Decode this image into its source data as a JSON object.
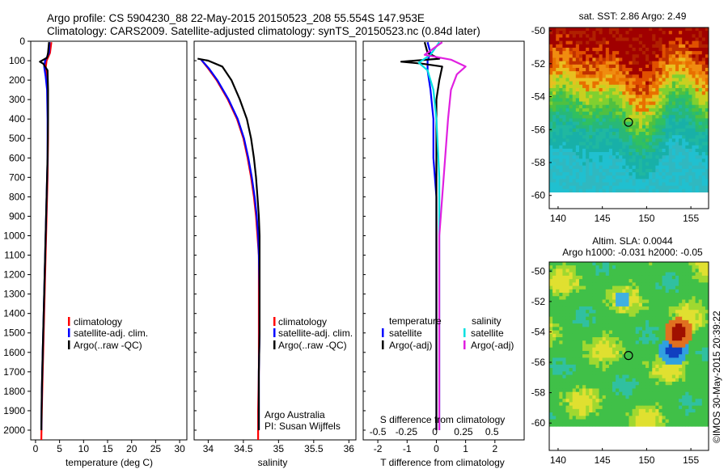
{
  "header": {
    "line1": "Argo profile: CS 5904230_88 22-May-2015 20150523_208 55.554S 147.953E",
    "line2": "Climatology: CARS2009. Satellite-adjusted climatology: synTS_20150523.nc (0.84d later)"
  },
  "colors": {
    "climatology": "#ff0000",
    "satellite": "#0000ff",
    "argo": "#000000",
    "satellite_salinity": "#00e0e0",
    "argo_salinity": "#e020e0"
  },
  "panels": {
    "temperature": {
      "xlabel": "temperature (deg C)",
      "legend": [
        "climatology",
        "satellite-adj. clim.",
        "Argo(..raw -QC)"
      ]
    },
    "salinity": {
      "xlabel": "salinity",
      "legend": [
        "climatology",
        "satellite-adj. clim.",
        "Argo(..raw -QC)"
      ],
      "note1": "Argo Australia",
      "note2": "PI: Susan Wijffels"
    },
    "difference": {
      "xlabel": "T difference from climatology",
      "top_label": "S difference from climatology",
      "legend_head_t": "temperature",
      "legend_head_s": "salinity",
      "legend_t": [
        "satellite",
        "Argo(-adj)"
      ],
      "legend_s": [
        "satellite",
        "Argo(-adj)"
      ]
    },
    "sst_map": {
      "title": "sat. SST: 2.86 Argo: 2.49"
    },
    "sla_map": {
      "title1": "Altim. SLA: 0.0044",
      "title2": "Argo h1000: -0.031 h2000: -0.05"
    }
  },
  "side_stamp": "©IMOS 30-May-2015 20:39:22",
  "chart_data": [
    {
      "type": "line",
      "name": "temperature",
      "xlim": [
        -1,
        31.5
      ],
      "ylim": [
        0,
        2050
      ],
      "y_reversed": true,
      "xticks": [
        0,
        5,
        10,
        15,
        20,
        25,
        30
      ],
      "yticks": [
        0,
        100,
        200,
        300,
        400,
        500,
        600,
        700,
        800,
        900,
        1000,
        1100,
        1200,
        1300,
        1400,
        1500,
        1600,
        1700,
        1800,
        1900,
        2000
      ],
      "xlabel": "temperature (deg C)",
      "series": [
        {
          "name": "climatology",
          "points": [
            [
              3.3,
              5
            ],
            [
              3.0,
              60
            ],
            [
              2.3,
              100
            ],
            [
              2.1,
              140
            ],
            [
              2.4,
              200
            ],
            [
              2.6,
              300
            ],
            [
              2.6,
              500
            ],
            [
              2.5,
              700
            ],
            [
              2.3,
              900
            ],
            [
              2.1,
              1100
            ],
            [
              1.9,
              1300
            ],
            [
              1.7,
              1500
            ],
            [
              1.5,
              1700
            ],
            [
              1.3,
              1900
            ],
            [
              1.2,
              2050
            ]
          ]
        },
        {
          "name": "satellite-adj. clim.",
          "points": [
            [
              2.9,
              5
            ],
            [
              2.8,
              60
            ],
            [
              2.0,
              100
            ],
            [
              1.8,
              130
            ],
            [
              2.1,
              180
            ],
            [
              2.4,
              250
            ],
            [
              2.5,
              400
            ],
            [
              2.5,
              600
            ],
            [
              2.3,
              800
            ],
            [
              2.1,
              1000
            ],
            [
              1.9,
              1200
            ],
            [
              1.7,
              1400
            ],
            [
              1.5,
              1600
            ],
            [
              1.3,
              1800
            ],
            [
              1.2,
              2000
            ]
          ]
        },
        {
          "name": "Argo(..raw -QC)",
          "points": [
            [
              2.8,
              5
            ],
            [
              2.6,
              60
            ],
            [
              2.4,
              85
            ],
            [
              0.9,
              105
            ],
            [
              1.6,
              115
            ],
            [
              2.5,
              150
            ],
            [
              2.6,
              250
            ],
            [
              2.6,
              400
            ],
            [
              2.5,
              600
            ],
            [
              2.3,
              800
            ],
            [
              2.1,
              1000
            ],
            [
              1.9,
              1200
            ],
            [
              1.7,
              1400
            ],
            [
              1.5,
              1600
            ],
            [
              1.3,
              1800
            ],
            [
              1.2,
              2000
            ]
          ]
        }
      ]
    },
    {
      "type": "line",
      "name": "salinity",
      "xlim": [
        33.8,
        36.1
      ],
      "ylim": [
        0,
        2050
      ],
      "y_reversed": true,
      "xticks": [
        34,
        34.5,
        35,
        35.5,
        36
      ],
      "yticks": [
        0,
        100,
        200,
        300,
        400,
        500,
        600,
        700,
        800,
        900,
        1000,
        1100,
        1200,
        1300,
        1400,
        1500,
        1600,
        1700,
        1800,
        1900,
        2000
      ],
      "xlabel": "salinity",
      "series": [
        {
          "name": "climatology",
          "points": [
            [
              33.9,
              95
            ],
            [
              34.0,
              140
            ],
            [
              34.12,
              200
            ],
            [
              34.28,
              300
            ],
            [
              34.41,
              400
            ],
            [
              34.5,
              500
            ],
            [
              34.56,
              600
            ],
            [
              34.61,
              700
            ],
            [
              34.65,
              800
            ],
            [
              34.68,
              900
            ],
            [
              34.7,
              1000
            ],
            [
              34.72,
              1100
            ],
            [
              34.72,
              1300
            ],
            [
              34.72,
              1500
            ],
            [
              34.72,
              1700
            ],
            [
              34.71,
              1900
            ],
            [
              34.71,
              2050
            ]
          ]
        },
        {
          "name": "satellite-adj. clim.",
          "points": [
            [
              33.9,
              95
            ],
            [
              34.01,
              140
            ],
            [
              34.13,
              200
            ],
            [
              34.29,
              300
            ],
            [
              34.42,
              400
            ],
            [
              34.51,
              500
            ],
            [
              34.57,
              600
            ],
            [
              34.62,
              700
            ],
            [
              34.66,
              800
            ],
            [
              34.69,
              900
            ],
            [
              34.71,
              1000
            ],
            [
              34.72,
              1100
            ],
            [
              34.73,
              1300
            ],
            [
              34.73,
              1500
            ],
            [
              34.72,
              1700
            ],
            [
              34.72,
              1900
            ],
            [
              34.72,
              2000
            ]
          ]
        },
        {
          "name": "Argo(..raw -QC)",
          "points": [
            [
              33.85,
              90
            ],
            [
              34.0,
              100
            ],
            [
              34.2,
              130
            ],
            [
              34.33,
              200
            ],
            [
              34.45,
              300
            ],
            [
              34.55,
              400
            ],
            [
              34.61,
              500
            ],
            [
              34.65,
              600
            ],
            [
              34.68,
              700
            ],
            [
              34.7,
              800
            ],
            [
              34.72,
              900
            ],
            [
              34.73,
              1000
            ],
            [
              34.73,
              1100
            ],
            [
              34.73,
              1300
            ],
            [
              34.73,
              1500
            ],
            [
              34.72,
              1700
            ],
            [
              34.72,
              1900
            ],
            [
              34.72,
              2000
            ]
          ]
        }
      ]
    },
    {
      "type": "line",
      "name": "difference",
      "xlim": [
        -2.5,
        3
      ],
      "ylim": [
        0,
        2050
      ],
      "y_reversed": true,
      "xticks": [
        -2,
        -1,
        0,
        1,
        2
      ],
      "top_ticks": [
        "-0.5",
        "-0.25",
        "0",
        "0.25",
        "0.5"
      ],
      "xlabel": "T difference from climatology",
      "series": [
        {
          "name": "temperature satellite",
          "points": [
            [
              -0.3,
              5
            ],
            [
              -0.2,
              60
            ],
            [
              -0.3,
              100
            ],
            [
              -0.3,
              150
            ],
            [
              -0.2,
              250
            ],
            [
              -0.1,
              400
            ],
            [
              -0.1,
              600
            ],
            [
              0,
              800
            ],
            [
              0,
              1000
            ],
            [
              0,
              1500
            ],
            [
              0,
              2000
            ]
          ]
        },
        {
          "name": "temperature Argo(-adj)",
          "points": [
            [
              -0.4,
              5
            ],
            [
              -0.3,
              60
            ],
            [
              0.1,
              90
            ],
            [
              -1.2,
              105
            ],
            [
              -0.5,
              115
            ],
            [
              0.2,
              130
            ],
            [
              0.1,
              200
            ],
            [
              0,
              300
            ],
            [
              0,
              500
            ],
            [
              0,
              800
            ],
            [
              0,
              1000
            ],
            [
              0,
              1500
            ],
            [
              0,
              2000
            ]
          ]
        },
        {
          "name": "salinity satellite",
          "points": [
            [
              0.1,
              5
            ],
            [
              -0.2,
              70
            ],
            [
              -0.6,
              110
            ],
            [
              -0.3,
              150
            ],
            [
              -0.1,
              250
            ],
            [
              0,
              400
            ],
            [
              0.1,
              700
            ],
            [
              0.1,
              1000
            ],
            [
              0.1,
              1500
            ],
            [
              0.1,
              2000
            ]
          ]
        },
        {
          "name": "salinity Argo(-adj)",
          "points": [
            [
              0.2,
              5
            ],
            [
              -0.4,
              70
            ],
            [
              0.5,
              95
            ],
            [
              1.0,
              130
            ],
            [
              0.7,
              170
            ],
            [
              0.5,
              250
            ],
            [
              0.4,
              400
            ],
            [
              0.3,
              600
            ],
            [
              0.2,
              800
            ],
            [
              0.1,
              1000
            ],
            [
              0.1,
              1500
            ],
            [
              0.1,
              2000
            ]
          ]
        }
      ]
    },
    {
      "type": "heatmap",
      "name": "sst_map",
      "title": "sat. SST: 2.86 Argo: 2.49",
      "xlim": [
        139,
        157
      ],
      "ylim": [
        -60.8,
        -49.8
      ],
      "xticks": [
        140,
        145,
        150,
        155
      ],
      "yticks": [
        -50,
        -52,
        -54,
        -56,
        -58,
        -60
      ],
      "argo_position": [
        147.953,
        -55.554
      ]
    },
    {
      "type": "heatmap",
      "name": "sla_map",
      "title": "Altim. SLA: 0.0044 Argo h1000: -0.031 h2000: -0.05",
      "xlim": [
        139,
        157
      ],
      "ylim": [
        -61.8,
        -49.4
      ],
      "xticks": [
        140,
        145,
        150,
        155
      ],
      "yticks": [
        -50,
        -52,
        -54,
        -56,
        -58,
        -60
      ],
      "argo_position": [
        147.953,
        -55.554
      ]
    }
  ]
}
